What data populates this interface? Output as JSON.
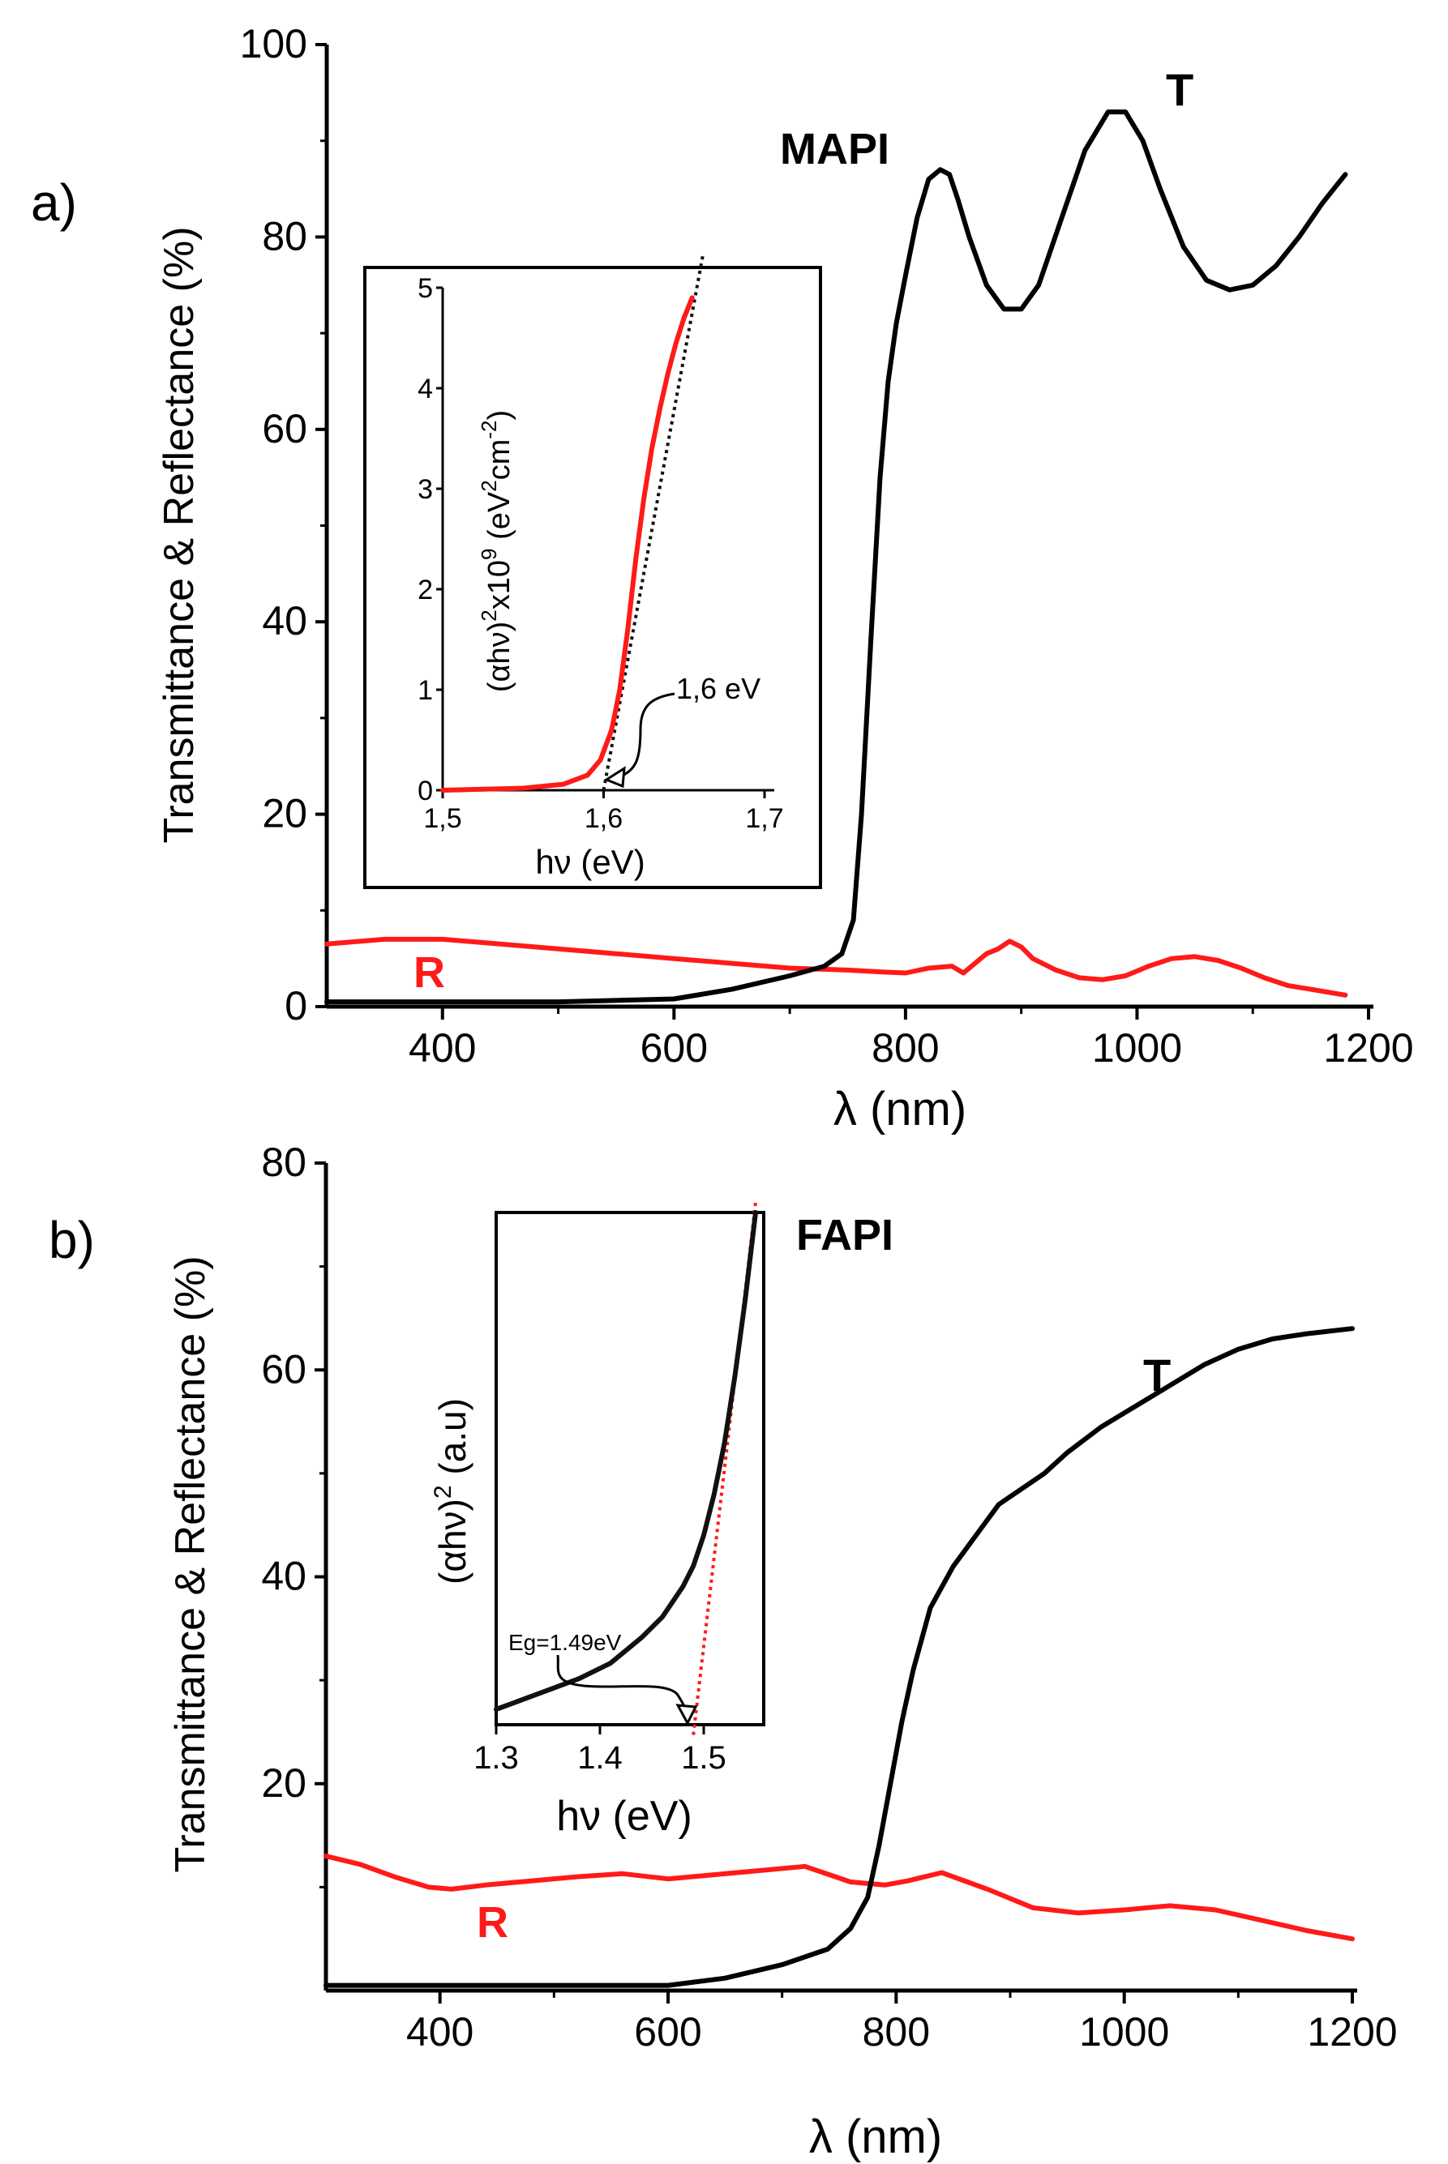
{
  "chart_data": [
    {
      "panel_label": "a)",
      "type": "line",
      "xlabel": "λ (nm)",
      "ylabel": "Transmittance & Reflectance (%)",
      "xlim": [
        300,
        1200
      ],
      "ylim": [
        0,
        100
      ],
      "xticks": [
        400,
        600,
        800,
        1000,
        1200
      ],
      "yticks": [
        0,
        20,
        40,
        60,
        80,
        100
      ],
      "sample_label": "MAPI",
      "colors": {
        "T": "#000000",
        "R": "#ff1a1a"
      },
      "series": [
        {
          "name": "T",
          "color": "#000000",
          "x": [
            300,
            400,
            500,
            600,
            650,
            700,
            730,
            745,
            755,
            762,
            770,
            778,
            785,
            792,
            800,
            810,
            820,
            830,
            838,
            845,
            855,
            870,
            885,
            900,
            915,
            935,
            955,
            975,
            990,
            1005,
            1020,
            1040,
            1060,
            1080,
            1100,
            1120,
            1140,
            1160,
            1180
          ],
          "y": [
            0.5,
            0.5,
            0.5,
            0.8,
            1.8,
            3.2,
            4.2,
            5.5,
            9,
            20,
            38,
            55,
            65,
            71,
            76,
            82,
            86,
            87,
            86.5,
            84,
            80,
            75,
            72.5,
            72.5,
            75,
            82,
            89,
            93,
            93,
            90,
            85,
            79,
            75.5,
            74.5,
            75,
            77,
            80,
            83.5,
            86.5
          ]
        },
        {
          "name": "R",
          "color": "#ff1a1a",
          "x": [
            300,
            350,
            400,
            450,
            500,
            550,
            600,
            650,
            700,
            750,
            780,
            800,
            820,
            840,
            850,
            860,
            870,
            880,
            890,
            900,
            910,
            930,
            950,
            970,
            990,
            1010,
            1030,
            1050,
            1070,
            1090,
            1110,
            1130,
            1150,
            1180
          ],
          "y": [
            6.5,
            7,
            7,
            6.5,
            6,
            5.5,
            5,
            4.5,
            4,
            3.8,
            3.6,
            3.5,
            4,
            4.2,
            3.5,
            4.5,
            5.5,
            6,
            6.8,
            6.2,
            5,
            3.8,
            3,
            2.8,
            3.2,
            4.2,
            5,
            5.2,
            4.8,
            4,
            3,
            2.2,
            1.8,
            1.2
          ]
        }
      ],
      "inset": {
        "type": "line",
        "xlabel": "hν (eV)",
        "ylabel": "(αhν)² x10⁹ (eV²cm⁻²)",
        "ylabel_parts": {
          "a": "(αhν)",
          "a_sup": "2",
          "b": "x10",
          "b_sup": "9",
          "c": " (eV",
          "c_sup": "2",
          "d": "cm",
          "d_sup": "-2",
          "e": ")"
        },
        "xlim": [
          1.5,
          1.7
        ],
        "ylim": [
          0,
          5
        ],
        "xticks": [
          "1,5",
          "1,6",
          "1,7"
        ],
        "yticks": [
          "0",
          "1",
          "2",
          "3",
          "4",
          "5"
        ],
        "annotation": "1,6 eV",
        "tangent": {
          "x": [
            1.6,
            1.662
          ],
          "y": [
            0,
            5.35
          ],
          "color": "#111111"
        },
        "series": [
          {
            "name": "",
            "color": "#ff1a1a",
            "x": [
              1.5,
              1.55,
              1.575,
              1.59,
              1.598,
              1.605,
              1.61,
              1.615,
              1.62,
              1.625,
              1.63,
              1.635,
              1.64,
              1.645,
              1.65,
              1.655
            ],
            "y": [
              0,
              0.02,
              0.06,
              0.15,
              0.3,
              0.6,
              1,
              1.6,
              2.3,
              2.9,
              3.4,
              3.8,
              4.15,
              4.45,
              4.7,
              4.9
            ]
          }
        ]
      }
    },
    {
      "panel_label": "b)",
      "type": "line",
      "xlabel": "λ (nm)",
      "ylabel": "Transmittance & Reflectance (%)",
      "xlim": [
        300,
        1200
      ],
      "ylim": [
        0,
        80
      ],
      "xticks": [
        400,
        600,
        800,
        1000,
        1200
      ],
      "yticks": [
        20,
        40,
        60,
        80
      ],
      "sample_label": "FAPI",
      "colors": {
        "T": "#000000",
        "R": "#ff1a1a"
      },
      "series": [
        {
          "name": "T",
          "color": "#000000",
          "x": [
            300,
            400,
            500,
            600,
            650,
            700,
            740,
            760,
            775,
            785,
            795,
            805,
            815,
            830,
            850,
            870,
            890,
            910,
            930,
            950,
            980,
            1010,
            1040,
            1070,
            1100,
            1130,
            1160,
            1200
          ],
          "y": [
            0.5,
            0.5,
            0.5,
            0.5,
            1.2,
            2.5,
            4,
            6,
            9,
            14,
            20,
            26,
            31,
            37,
            41,
            44,
            47,
            48.5,
            50,
            52,
            54.5,
            56.5,
            58.5,
            60.5,
            62,
            63,
            63.5,
            64
          ]
        },
        {
          "name": "R",
          "color": "#ff1a1a",
          "x": [
            300,
            330,
            360,
            390,
            410,
            440,
            480,
            520,
            560,
            600,
            640,
            680,
            720,
            760,
            790,
            810,
            840,
            880,
            920,
            960,
            1000,
            1040,
            1080,
            1120,
            1160,
            1200
          ],
          "y": [
            13,
            12.2,
            11,
            10,
            9.8,
            10.2,
            10.6,
            11,
            11.3,
            10.8,
            11.2,
            11.6,
            12,
            10.5,
            10.2,
            10.6,
            11.4,
            9.8,
            8,
            7.5,
            7.8,
            8.2,
            7.8,
            6.8,
            5.8,
            5
          ]
        }
      ],
      "inset": {
        "type": "line",
        "xlabel": "hν (eV)",
        "ylabel": "(αhν)² (a.u)",
        "ylabel_parts": {
          "a": "(αhν)",
          "a_sup": "2",
          "b": " (a.u)"
        },
        "xlim": [
          1.3,
          1.55
        ],
        "ylim": [
          0,
          1
        ],
        "xticks": [
          "1.3",
          "1.4",
          "1.5"
        ],
        "yticks": [],
        "annotation": "Eg=1.49eV",
        "tangent": {
          "x": [
            1.49,
            1.55
          ],
          "y": [
            -0.02,
            1.02
          ],
          "color": "#ff1a1a"
        },
        "series": [
          {
            "name": "",
            "color": "#111111",
            "x": [
              1.3,
              1.34,
              1.38,
              1.41,
              1.44,
              1.46,
              1.48,
              1.49,
              1.5,
              1.51,
              1.52,
              1.53,
              1.54,
              1.55
            ],
            "y": [
              0.03,
              0.06,
              0.09,
              0.12,
              0.17,
              0.21,
              0.27,
              0.31,
              0.37,
              0.45,
              0.55,
              0.68,
              0.83,
              1.0
            ]
          }
        ]
      }
    }
  ]
}
